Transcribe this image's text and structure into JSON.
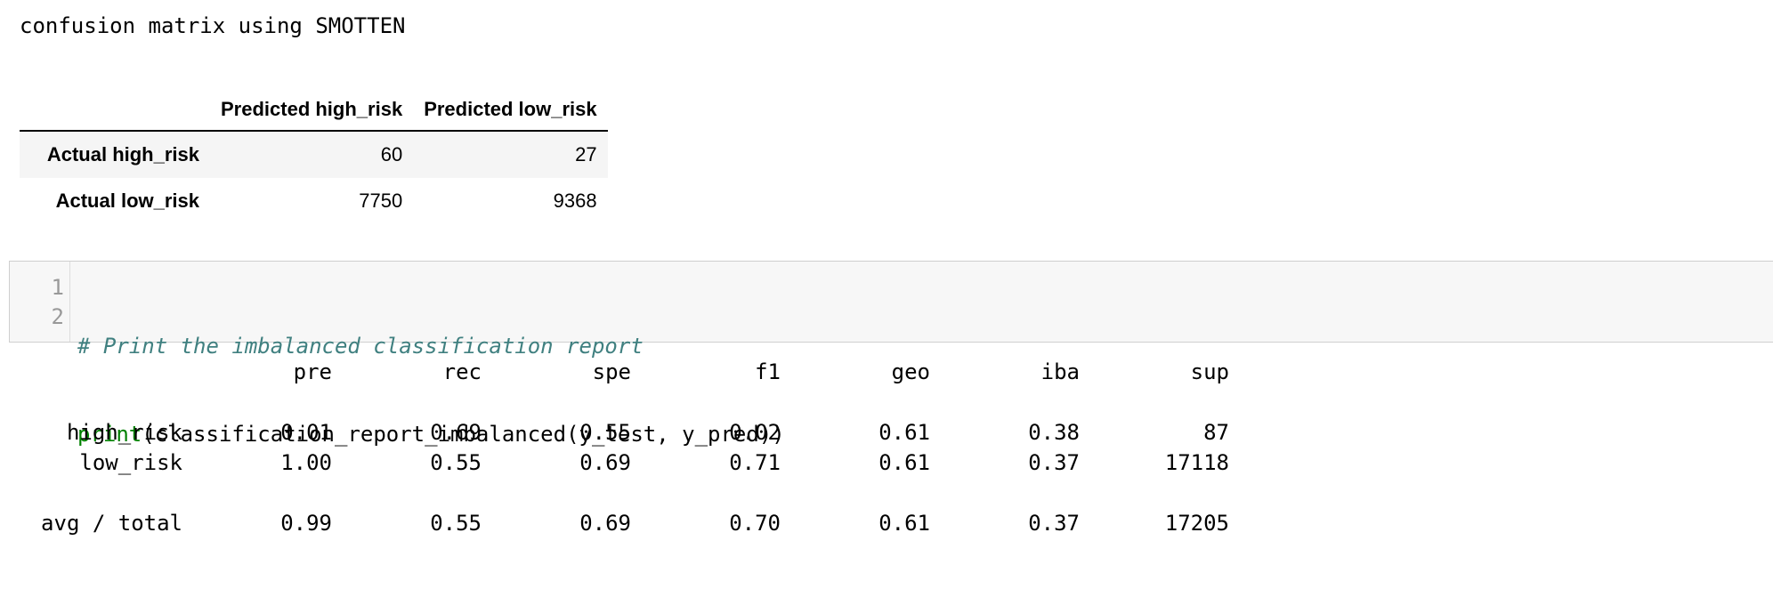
{
  "output_title": "confusion matrix using SMOTTEN",
  "confusion_matrix": {
    "corner": "",
    "columns": [
      "Predicted high_risk",
      "Predicted low_risk"
    ],
    "rows": [
      {
        "label": "Actual high_risk",
        "values": [
          "60",
          "27"
        ]
      },
      {
        "label": "Actual low_risk",
        "values": [
          "7750",
          "9368"
        ]
      }
    ]
  },
  "code_cell": {
    "line_numbers": [
      "1",
      "2"
    ],
    "comment": "# Print the imbalanced classification report",
    "builtin": "print",
    "rest": "(classification_report_imbalanced(y_test, y_pred))"
  },
  "report": {
    "headers": [
      "pre",
      "rec",
      "spe",
      "f1",
      "geo",
      "iba",
      "sup"
    ],
    "rows": [
      {
        "label": "high_risk",
        "values": [
          "0.01",
          "0.69",
          "0.55",
          "0.02",
          "0.61",
          "0.38",
          "87"
        ]
      },
      {
        "label": "low_risk",
        "values": [
          "1.00",
          "0.55",
          "0.69",
          "0.71",
          "0.61",
          "0.37",
          "17118"
        ]
      },
      {
        "label": "avg / total",
        "values": [
          "0.99",
          "0.55",
          "0.69",
          "0.70",
          "0.61",
          "0.37",
          "17205"
        ]
      }
    ]
  }
}
